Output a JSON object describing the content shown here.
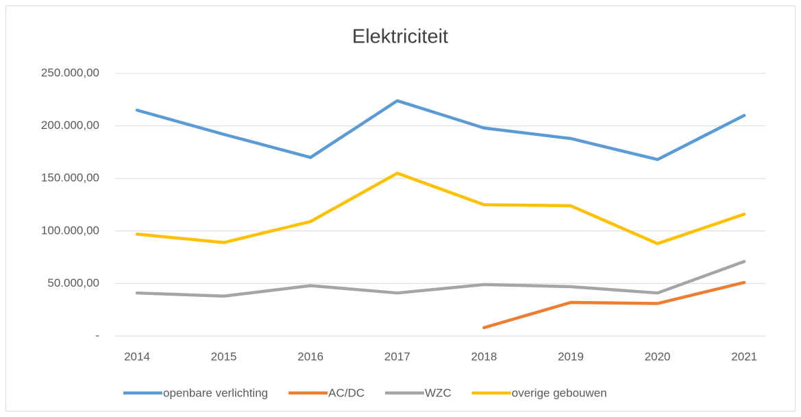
{
  "chart_data": {
    "type": "line",
    "title": "Elektriciteit",
    "categories": [
      "2014",
      "2015",
      "2016",
      "2017",
      "2018",
      "2019",
      "2020",
      "2021"
    ],
    "series": [
      {
        "name": "openbare verlichting",
        "color": "#5b9bd5",
        "values": [
          215000,
          192000,
          170000,
          224000,
          198000,
          188000,
          168000,
          210000
        ]
      },
      {
        "name": "AC/DC",
        "color": "#ed7d31",
        "values": [
          null,
          null,
          null,
          null,
          8000,
          32000,
          31000,
          51000
        ]
      },
      {
        "name": "WZC",
        "color": "#a5a5a5",
        "values": [
          41000,
          38000,
          48000,
          41000,
          49000,
          47000,
          41000,
          71000
        ]
      },
      {
        "name": "overige gebouwen",
        "color": "#ffc000",
        "values": [
          97000,
          89000,
          109000,
          155000,
          125000,
          124000,
          88000,
          116000
        ]
      }
    ],
    "ylim": [
      0,
      250000
    ],
    "yticks": [
      {
        "value": 0,
        "label": "-"
      },
      {
        "value": 50000,
        "label": "50.000,00"
      },
      {
        "value": 100000,
        "label": "100.000,00"
      },
      {
        "value": 150000,
        "label": "150.000,00"
      },
      {
        "value": 200000,
        "label": "200.000,00"
      },
      {
        "value": 250000,
        "label": "250.000,00"
      }
    ],
    "grid": true,
    "legend": "bottom"
  }
}
